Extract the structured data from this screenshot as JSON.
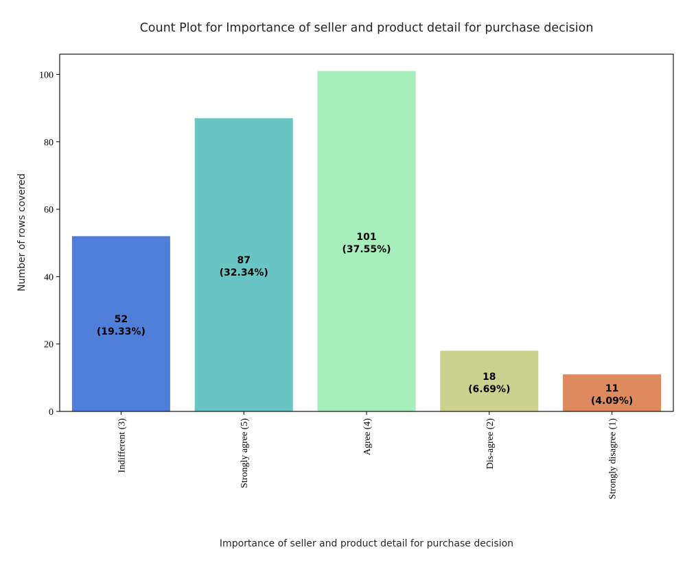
{
  "chart_data": {
    "type": "bar",
    "title": "Count Plot for Importance of seller and product detail for purchase decision",
    "xlabel": "Importance of seller and product detail for purchase decision",
    "ylabel": "Number of rows covered",
    "categories": [
      "Indifferent (3)",
      "Strongly agree (5)",
      "Agree (4)",
      "Dis-agree (2)",
      "Strongly disagree (1)"
    ],
    "values": [
      52,
      87,
      101,
      18,
      11
    ],
    "data_labels": [
      [
        "52",
        "(19.33%)"
      ],
      [
        "87",
        "(32.34%)"
      ],
      [
        "101",
        "(37.55%)"
      ],
      [
        "18",
        "(6.69%)"
      ],
      [
        "11",
        "(4.09%)"
      ]
    ],
    "colors": [
      "#4f7fd9",
      "#69c4c4",
      "#a6eebb",
      "#cbd290",
      "#dc8a5e"
    ],
    "ylim": [
      0,
      106
    ],
    "yticks": [
      0,
      20,
      40,
      60,
      80,
      100
    ],
    "grid": false,
    "legend": "none"
  }
}
